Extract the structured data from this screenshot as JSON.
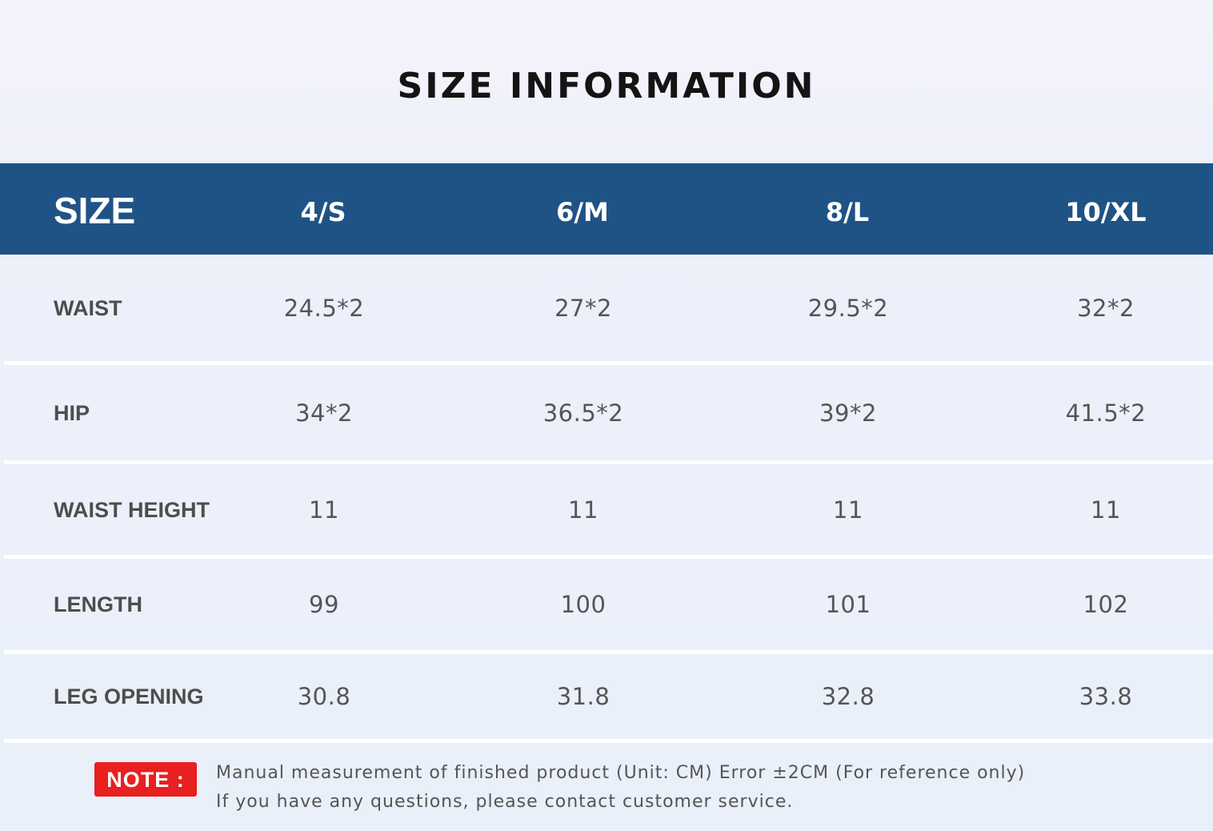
{
  "title": "SIZE INFORMATION",
  "table": {
    "corner_label": "SIZE",
    "columns": [
      "4/S",
      "6/M",
      "8/L",
      "10/XL"
    ],
    "rows": [
      {
        "label": "WAIST",
        "values": [
          "24.5*2",
          "27*2",
          "29.5*2",
          "32*2"
        ]
      },
      {
        "label": "HIP",
        "values": [
          "34*2",
          "36.5*2",
          "39*2",
          "41.5*2"
        ]
      },
      {
        "label": "WAIST HEIGHT",
        "values": [
          "11",
          "11",
          "11",
          "11"
        ]
      },
      {
        "label": "LENGTH",
        "values": [
          "99",
          "100",
          "101",
          "102"
        ]
      },
      {
        "label": "LEG OPENING",
        "values": [
          "30.8",
          "31.8",
          "32.8",
          "33.8"
        ]
      }
    ]
  },
  "note": {
    "badge": "NOTE :",
    "line1": "Manual measurement of finished product (Unit: CM)  Error ±2CM (For reference only)",
    "line2": "If you have any questions, please contact customer service."
  },
  "colors": {
    "header_bar": "#1f5386",
    "note_badge": "#e8201f",
    "title_text": "#141414",
    "body_text": "#555555"
  }
}
